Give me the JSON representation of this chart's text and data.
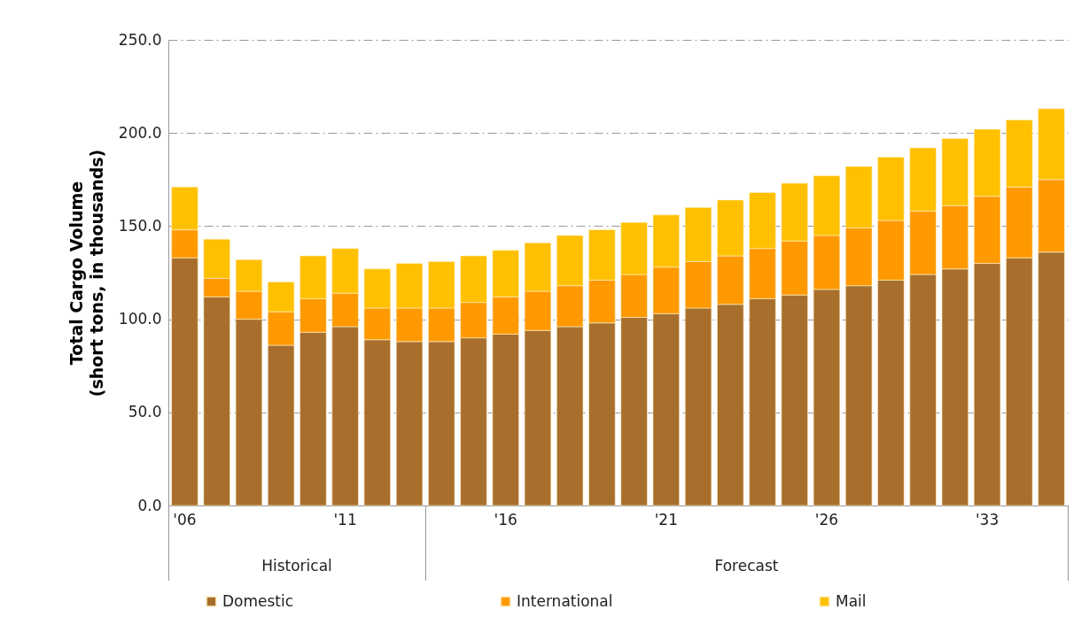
{
  "chart_data": {
    "type": "bar",
    "stacked": true,
    "ylabel": "Total Cargo Volume\n(short tons, in thousands)",
    "categories": [
      "'06",
      null,
      null,
      null,
      null,
      "'11",
      null,
      null,
      null,
      null,
      "'16",
      null,
      null,
      null,
      null,
      "'21",
      null,
      null,
      null,
      null,
      "'26",
      null,
      null,
      null,
      null,
      "'33",
      null,
      null
    ],
    "series": [
      {
        "name": "Domestic",
        "color": "#a86f2c",
        "values": [
          133,
          112,
          100,
          86,
          93,
          96,
          89,
          88,
          88,
          90,
          92,
          94,
          96,
          98,
          101,
          103,
          106,
          108,
          111,
          113,
          116,
          118,
          121,
          124,
          127,
          130,
          133,
          136
        ]
      },
      {
        "name": "International",
        "color": "#ff9900",
        "values": [
          15,
          10,
          15,
          18,
          18,
          18,
          17,
          18,
          18,
          19,
          20,
          21,
          22,
          23,
          23,
          25,
          25,
          26,
          27,
          29,
          29,
          31,
          32,
          34,
          34,
          36,
          38,
          39
        ]
      },
      {
        "name": "Mail",
        "color": "#ffc000",
        "values": [
          23,
          21,
          17,
          16,
          23,
          24,
          21,
          24,
          25,
          25,
          25,
          26,
          27,
          27,
          28,
          28,
          29,
          30,
          30,
          31,
          32,
          33,
          34,
          34,
          36,
          36,
          36,
          38
        ]
      }
    ],
    "ylim": [
      0,
      250
    ],
    "yticks": [
      {
        "value": 0,
        "label": "0.0"
      },
      {
        "value": 50,
        "label": "50.0"
      },
      {
        "value": 100,
        "label": "100.0"
      },
      {
        "value": 150,
        "label": "150.0"
      },
      {
        "value": 200,
        "label": "200.0"
      },
      {
        "value": 250,
        "label": "250.0"
      }
    ],
    "grid": "y",
    "legend": "bottom",
    "annotations": [
      "Historical",
      "Forecast"
    ]
  }
}
